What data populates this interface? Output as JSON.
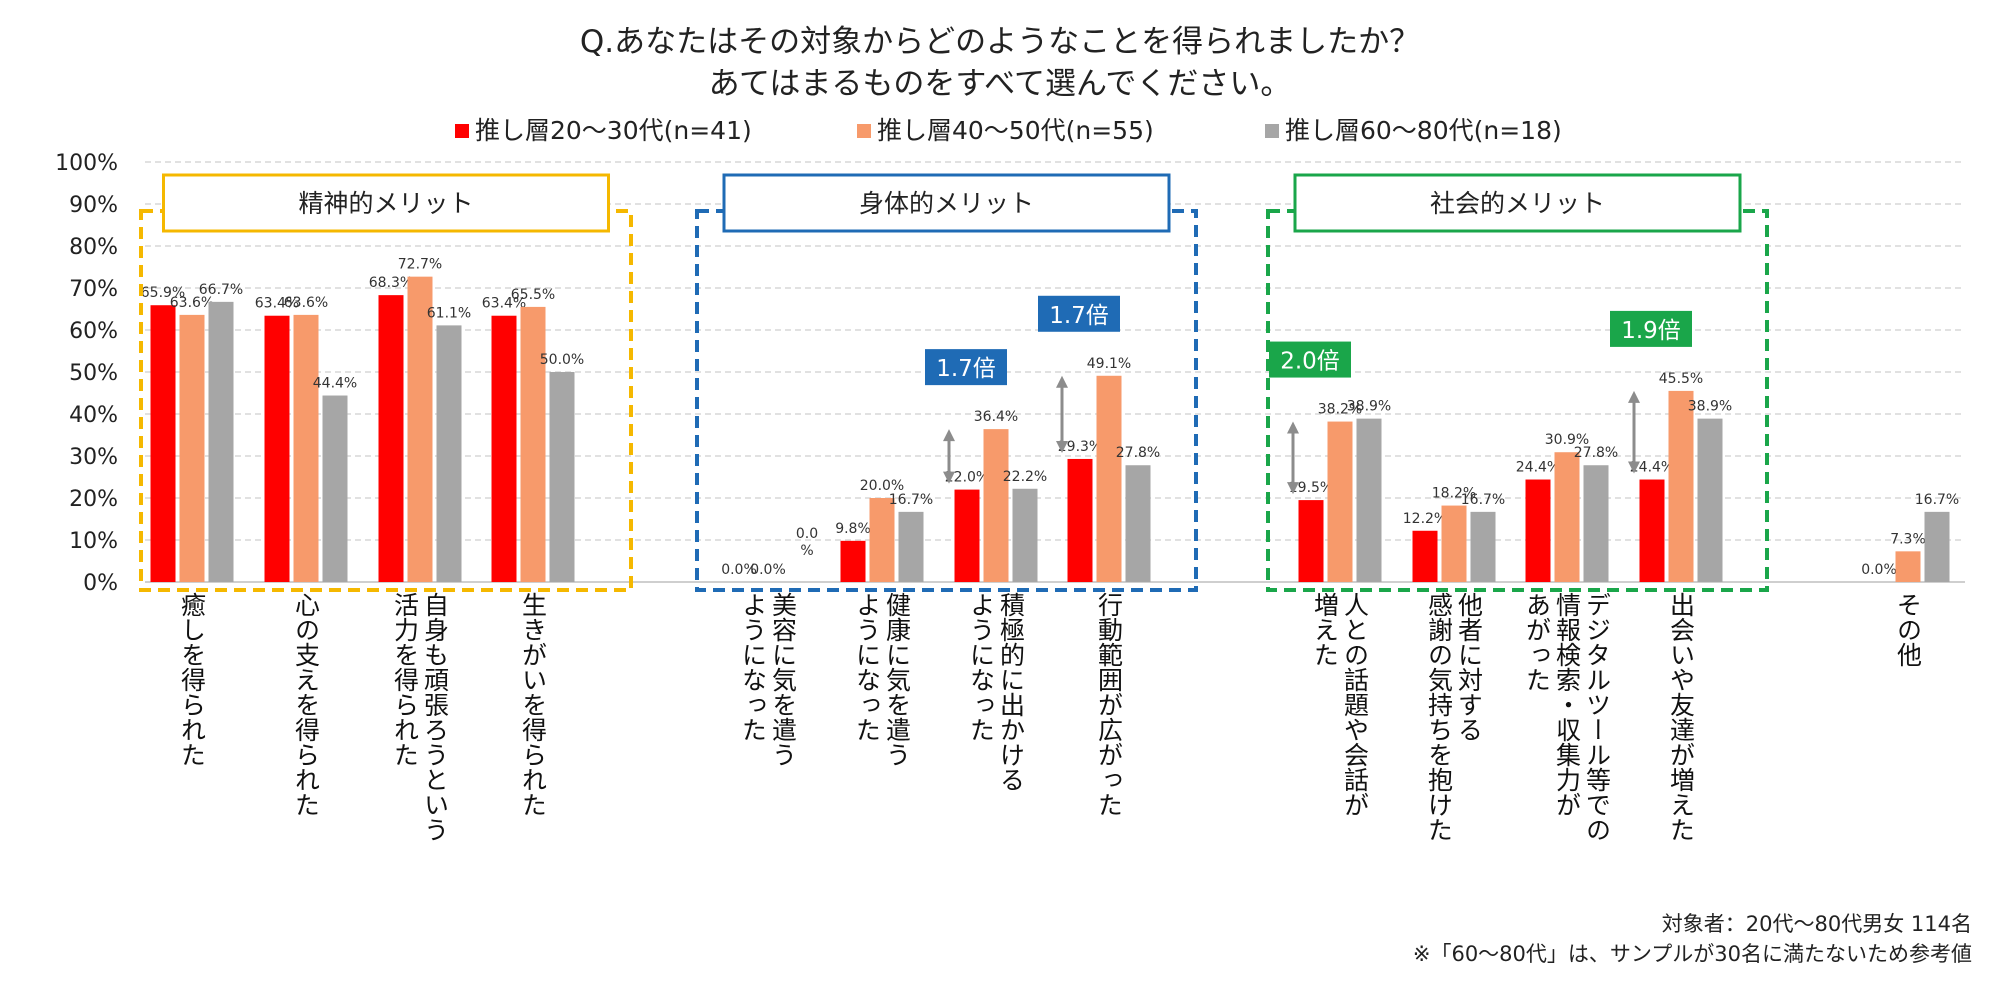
{
  "title_line1": "Q.あなたはその対象からどのようなことを得られましたか？",
  "title_line2": "あてはまるものをすべて選んでください。",
  "colors": {
    "s1": "#ff0000",
    "s2": "#f79a6b",
    "s3": "#a6a6a6",
    "yellow": "#f5b800",
    "blue": "#1f6bb5",
    "green": "#1aa64a"
  },
  "chart_data": {
    "type": "bar",
    "ylim": [
      0,
      100
    ],
    "yticks": [
      "0%",
      "10%",
      "20%",
      "30%",
      "40%",
      "50%",
      "60%",
      "70%",
      "80%",
      "90%",
      "100%"
    ],
    "grid": true,
    "legend_position": "top",
    "series": [
      {
        "name": "推し層20～30代(n=41)",
        "values": [
          65.9,
          63.4,
          68.3,
          63.4,
          0.0,
          9.8,
          22.0,
          29.3,
          19.5,
          12.2,
          24.4,
          24.4,
          0.0
        ],
        "labels": [
          "65.9%",
          "63.4%",
          "68.3%",
          "63.4%",
          "0.0%",
          "9.8%",
          "22.0%",
          "29.3%",
          "19.5%",
          "12.2%",
          "24.4%",
          "24.4%",
          "0.0%"
        ]
      },
      {
        "name": "推し層40～50代(n=55)",
        "values": [
          63.6,
          63.6,
          72.7,
          65.5,
          0.0,
          20.0,
          36.4,
          49.1,
          38.2,
          18.2,
          30.9,
          45.5,
          7.3
        ],
        "labels": [
          "63.6%",
          "63.6%",
          "72.7%",
          "65.5%",
          "0.0%",
          "20.0%",
          "36.4%",
          "49.1%",
          "38.2%",
          "18.2%",
          "30.9%",
          "45.5%",
          "7.3%"
        ]
      },
      {
        "name": "推し層60～80代(n=18)",
        "values": [
          66.7,
          44.4,
          61.1,
          50.0,
          0.0,
          16.7,
          22.2,
          27.8,
          38.9,
          16.7,
          27.8,
          38.9,
          16.7
        ],
        "labels": [
          "66.7%",
          "44.4%",
          "61.1%",
          "50.0%",
          "0.0%",
          "16.7%",
          "22.2%",
          "27.8%",
          "38.9%",
          "16.7%",
          "27.8%",
          "38.9%",
          "16.7%"
        ]
      }
    ],
    "categories": [
      [
        "癒しを得られた"
      ],
      [
        "心の支えを得られた"
      ],
      [
        "自身も頑張ろうという",
        "活力を得られた"
      ],
      [
        "生きがいを得られた"
      ],
      [
        "美容に気を遣う",
        "ようになった"
      ],
      [
        "健康に気を遣う",
        "ようになった"
      ],
      [
        "積極的に出かける",
        "ようになった"
      ],
      [
        "行動範囲が広がった"
      ],
      [
        "人との話題や会話が",
        "増えた"
      ],
      [
        "他者に対する",
        "感謝の気持ちを抱けた"
      ],
      [
        "デジタルツール等での",
        "情報検索・収集力が",
        "あがった"
      ],
      [
        "出会いや友達が増えた"
      ],
      [
        "その他"
      ]
    ],
    "groups": [
      {
        "label": "精神的メリット",
        "color_key": "yellow",
        "from": 0,
        "to": 3
      },
      {
        "label": "身体的メリット",
        "color_key": "blue",
        "from": 4,
        "to": 7
      },
      {
        "label": "社会的メリット",
        "color_key": "green",
        "from": 8,
        "to": 11
      }
    ],
    "annotations": [
      {
        "text": "1.7倍",
        "category": 6,
        "color_key": "blue",
        "from_value": 22.0,
        "to_value": 36.4
      },
      {
        "text": "1.7倍",
        "category": 7,
        "color_key": "blue",
        "from_value": 29.3,
        "to_value": 49.1
      },
      {
        "text": "2.0倍",
        "category": 8,
        "color_key": "green",
        "from_value": 19.5,
        "to_value": 38.2
      },
      {
        "text": "1.9倍",
        "category": 11,
        "color_key": "green",
        "from_value": 24.4,
        "to_value": 45.5
      }
    ]
  },
  "footnote1": "対象者：20代～80代男女 114名",
  "footnote2": "※「60～80代」は、サンプルが30名に満たないため参考値"
}
